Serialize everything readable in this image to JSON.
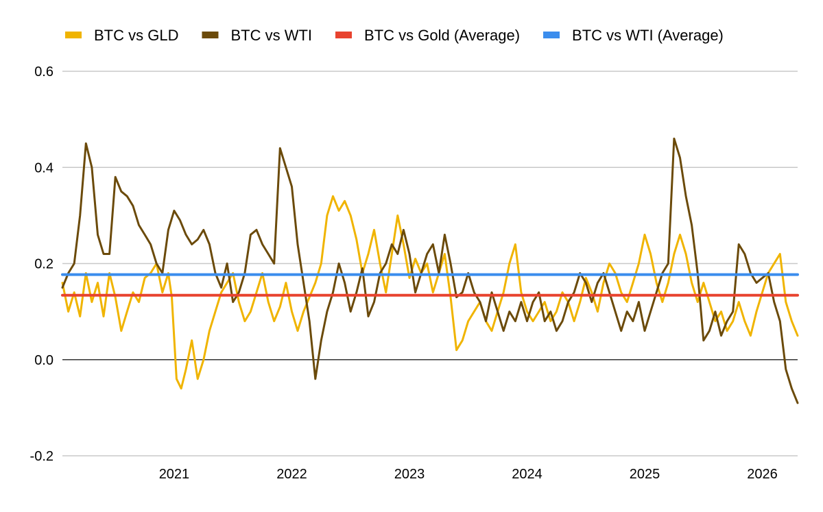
{
  "chart_data": {
    "type": "line",
    "title": "",
    "xlabel": "",
    "ylabel": "",
    "ylim": [
      -0.2,
      0.6
    ],
    "y_ticks": [
      {
        "value": 0.6,
        "label": "0.6"
      },
      {
        "value": 0.4,
        "label": "0.4"
      },
      {
        "value": 0.2,
        "label": "0.2"
      },
      {
        "value": 0.0,
        "label": "0.0"
      },
      {
        "value": -0.2,
        "label": "-0.2"
      }
    ],
    "x_range": [
      2020.05,
      2026.3
    ],
    "x_ticks": [
      {
        "value": 2021.0,
        "label": "2021"
      },
      {
        "value": 2022.0,
        "label": "2022"
      },
      {
        "value": 2023.0,
        "label": "2023"
      },
      {
        "value": 2024.0,
        "label": "2024"
      },
      {
        "value": 2025.0,
        "label": "2025"
      },
      {
        "value": 2026.0,
        "label": "2026"
      }
    ],
    "grid": true,
    "legend_position": "top",
    "series": [
      {
        "name": "BTC vs GLD",
        "color": "#f0b400",
        "points": [
          [
            2020.05,
            0.16
          ],
          [
            2020.1,
            0.1
          ],
          [
            2020.15,
            0.14
          ],
          [
            2020.2,
            0.09
          ],
          [
            2020.25,
            0.18
          ],
          [
            2020.3,
            0.12
          ],
          [
            2020.35,
            0.16
          ],
          [
            2020.4,
            0.09
          ],
          [
            2020.45,
            0.18
          ],
          [
            2020.5,
            0.13
          ],
          [
            2020.55,
            0.06
          ],
          [
            2020.6,
            0.1
          ],
          [
            2020.65,
            0.14
          ],
          [
            2020.7,
            0.12
          ],
          [
            2020.75,
            0.17
          ],
          [
            2020.8,
            0.18
          ],
          [
            2020.85,
            0.2
          ],
          [
            2020.9,
            0.14
          ],
          [
            2020.95,
            0.18
          ],
          [
            2020.98,
            0.13
          ],
          [
            2021.02,
            -0.04
          ],
          [
            2021.06,
            -0.06
          ],
          [
            2021.1,
            -0.02
          ],
          [
            2021.15,
            0.04
          ],
          [
            2021.2,
            -0.04
          ],
          [
            2021.25,
            0.0
          ],
          [
            2021.3,
            0.06
          ],
          [
            2021.35,
            0.1
          ],
          [
            2021.4,
            0.14
          ],
          [
            2021.45,
            0.16
          ],
          [
            2021.5,
            0.18
          ],
          [
            2021.55,
            0.12
          ],
          [
            2021.6,
            0.08
          ],
          [
            2021.65,
            0.1
          ],
          [
            2021.7,
            0.14
          ],
          [
            2021.75,
            0.18
          ],
          [
            2021.8,
            0.12
          ],
          [
            2021.85,
            0.08
          ],
          [
            2021.9,
            0.11
          ],
          [
            2021.95,
            0.16
          ],
          [
            2022.0,
            0.1
          ],
          [
            2022.05,
            0.06
          ],
          [
            2022.1,
            0.1
          ],
          [
            2022.15,
            0.13
          ],
          [
            2022.2,
            0.16
          ],
          [
            2022.25,
            0.2
          ],
          [
            2022.3,
            0.3
          ],
          [
            2022.35,
            0.34
          ],
          [
            2022.4,
            0.31
          ],
          [
            2022.45,
            0.33
          ],
          [
            2022.5,
            0.3
          ],
          [
            2022.55,
            0.25
          ],
          [
            2022.6,
            0.18
          ],
          [
            2022.65,
            0.22
          ],
          [
            2022.7,
            0.27
          ],
          [
            2022.75,
            0.2
          ],
          [
            2022.8,
            0.14
          ],
          [
            2022.85,
            0.22
          ],
          [
            2022.9,
            0.3
          ],
          [
            2022.95,
            0.24
          ],
          [
            2023.0,
            0.17
          ],
          [
            2023.05,
            0.21
          ],
          [
            2023.1,
            0.18
          ],
          [
            2023.15,
            0.2
          ],
          [
            2023.2,
            0.14
          ],
          [
            2023.25,
            0.18
          ],
          [
            2023.3,
            0.22
          ],
          [
            2023.35,
            0.13
          ],
          [
            2023.4,
            0.02
          ],
          [
            2023.45,
            0.04
          ],
          [
            2023.5,
            0.08
          ],
          [
            2023.55,
            0.1
          ],
          [
            2023.6,
            0.12
          ],
          [
            2023.65,
            0.08
          ],
          [
            2023.7,
            0.06
          ],
          [
            2023.75,
            0.1
          ],
          [
            2023.8,
            0.14
          ],
          [
            2023.85,
            0.2
          ],
          [
            2023.9,
            0.24
          ],
          [
            2023.95,
            0.14
          ],
          [
            2024.0,
            0.1
          ],
          [
            2024.05,
            0.08
          ],
          [
            2024.1,
            0.1
          ],
          [
            2024.15,
            0.12
          ],
          [
            2024.2,
            0.08
          ],
          [
            2024.25,
            0.1
          ],
          [
            2024.3,
            0.14
          ],
          [
            2024.35,
            0.12
          ],
          [
            2024.4,
            0.08
          ],
          [
            2024.45,
            0.12
          ],
          [
            2024.5,
            0.17
          ],
          [
            2024.55,
            0.14
          ],
          [
            2024.6,
            0.1
          ],
          [
            2024.65,
            0.16
          ],
          [
            2024.7,
            0.2
          ],
          [
            2024.75,
            0.18
          ],
          [
            2024.8,
            0.14
          ],
          [
            2024.85,
            0.12
          ],
          [
            2024.9,
            0.16
          ],
          [
            2024.95,
            0.2
          ],
          [
            2025.0,
            0.26
          ],
          [
            2025.05,
            0.22
          ],
          [
            2025.1,
            0.16
          ],
          [
            2025.15,
            0.12
          ],
          [
            2025.2,
            0.16
          ],
          [
            2025.25,
            0.22
          ],
          [
            2025.3,
            0.26
          ],
          [
            2025.35,
            0.22
          ],
          [
            2025.4,
            0.16
          ],
          [
            2025.45,
            0.12
          ],
          [
            2025.5,
            0.16
          ],
          [
            2025.55,
            0.12
          ],
          [
            2025.6,
            0.08
          ],
          [
            2025.65,
            0.1
          ],
          [
            2025.7,
            0.06
          ],
          [
            2025.75,
            0.08
          ],
          [
            2025.8,
            0.12
          ],
          [
            2025.85,
            0.08
          ],
          [
            2025.9,
            0.05
          ],
          [
            2025.95,
            0.1
          ],
          [
            2026.0,
            0.14
          ],
          [
            2026.05,
            0.18
          ],
          [
            2026.1,
            0.2
          ],
          [
            2026.15,
            0.22
          ],
          [
            2026.2,
            0.12
          ],
          [
            2026.25,
            0.08
          ],
          [
            2026.3,
            0.05
          ]
        ]
      },
      {
        "name": "BTC vs WTI",
        "color": "#6b4a0a",
        "points": [
          [
            2020.05,
            0.15
          ],
          [
            2020.1,
            0.18
          ],
          [
            2020.15,
            0.2
          ],
          [
            2020.2,
            0.3
          ],
          [
            2020.25,
            0.45
          ],
          [
            2020.3,
            0.4
          ],
          [
            2020.35,
            0.26
          ],
          [
            2020.4,
            0.22
          ],
          [
            2020.45,
            0.22
          ],
          [
            2020.5,
            0.38
          ],
          [
            2020.55,
            0.35
          ],
          [
            2020.6,
            0.34
          ],
          [
            2020.65,
            0.32
          ],
          [
            2020.7,
            0.28
          ],
          [
            2020.75,
            0.26
          ],
          [
            2020.8,
            0.24
          ],
          [
            2020.85,
            0.2
          ],
          [
            2020.9,
            0.18
          ],
          [
            2020.95,
            0.27
          ],
          [
            2021.0,
            0.31
          ],
          [
            2021.05,
            0.29
          ],
          [
            2021.1,
            0.26
          ],
          [
            2021.15,
            0.24
          ],
          [
            2021.2,
            0.25
          ],
          [
            2021.25,
            0.27
          ],
          [
            2021.3,
            0.24
          ],
          [
            2021.35,
            0.18
          ],
          [
            2021.4,
            0.15
          ],
          [
            2021.45,
            0.2
          ],
          [
            2021.5,
            0.12
          ],
          [
            2021.55,
            0.14
          ],
          [
            2021.6,
            0.18
          ],
          [
            2021.65,
            0.26
          ],
          [
            2021.7,
            0.27
          ],
          [
            2021.75,
            0.24
          ],
          [
            2021.8,
            0.22
          ],
          [
            2021.85,
            0.2
          ],
          [
            2021.9,
            0.44
          ],
          [
            2021.95,
            0.4
          ],
          [
            2022.0,
            0.36
          ],
          [
            2022.05,
            0.24
          ],
          [
            2022.1,
            0.16
          ],
          [
            2022.15,
            0.08
          ],
          [
            2022.2,
            -0.04
          ],
          [
            2022.25,
            0.04
          ],
          [
            2022.3,
            0.1
          ],
          [
            2022.35,
            0.14
          ],
          [
            2022.4,
            0.2
          ],
          [
            2022.45,
            0.16
          ],
          [
            2022.5,
            0.1
          ],
          [
            2022.55,
            0.14
          ],
          [
            2022.6,
            0.19
          ],
          [
            2022.65,
            0.09
          ],
          [
            2022.7,
            0.12
          ],
          [
            2022.75,
            0.18
          ],
          [
            2022.8,
            0.2
          ],
          [
            2022.85,
            0.24
          ],
          [
            2022.9,
            0.22
          ],
          [
            2022.95,
            0.27
          ],
          [
            2023.0,
            0.22
          ],
          [
            2023.05,
            0.14
          ],
          [
            2023.1,
            0.18
          ],
          [
            2023.15,
            0.22
          ],
          [
            2023.2,
            0.24
          ],
          [
            2023.25,
            0.18
          ],
          [
            2023.3,
            0.26
          ],
          [
            2023.35,
            0.2
          ],
          [
            2023.4,
            0.13
          ],
          [
            2023.45,
            0.14
          ],
          [
            2023.5,
            0.18
          ],
          [
            2023.55,
            0.14
          ],
          [
            2023.6,
            0.12
          ],
          [
            2023.65,
            0.08
          ],
          [
            2023.7,
            0.14
          ],
          [
            2023.75,
            0.1
          ],
          [
            2023.8,
            0.06
          ],
          [
            2023.85,
            0.1
          ],
          [
            2023.9,
            0.08
          ],
          [
            2023.95,
            0.12
          ],
          [
            2024.0,
            0.08
          ],
          [
            2024.05,
            0.12
          ],
          [
            2024.1,
            0.14
          ],
          [
            2024.15,
            0.08
          ],
          [
            2024.2,
            0.1
          ],
          [
            2024.25,
            0.06
          ],
          [
            2024.3,
            0.08
          ],
          [
            2024.35,
            0.12
          ],
          [
            2024.4,
            0.14
          ],
          [
            2024.45,
            0.18
          ],
          [
            2024.5,
            0.16
          ],
          [
            2024.55,
            0.12
          ],
          [
            2024.6,
            0.16
          ],
          [
            2024.65,
            0.18
          ],
          [
            2024.7,
            0.14
          ],
          [
            2024.75,
            0.1
          ],
          [
            2024.8,
            0.06
          ],
          [
            2024.85,
            0.1
          ],
          [
            2024.9,
            0.08
          ],
          [
            2024.95,
            0.12
          ],
          [
            2025.0,
            0.06
          ],
          [
            2025.05,
            0.1
          ],
          [
            2025.1,
            0.14
          ],
          [
            2025.15,
            0.18
          ],
          [
            2025.2,
            0.2
          ],
          [
            2025.25,
            0.46
          ],
          [
            2025.3,
            0.42
          ],
          [
            2025.35,
            0.34
          ],
          [
            2025.4,
            0.28
          ],
          [
            2025.45,
            0.18
          ],
          [
            2025.5,
            0.04
          ],
          [
            2025.55,
            0.06
          ],
          [
            2025.6,
            0.1
          ],
          [
            2025.65,
            0.05
          ],
          [
            2025.7,
            0.08
          ],
          [
            2025.75,
            0.1
          ],
          [
            2025.8,
            0.24
          ],
          [
            2025.85,
            0.22
          ],
          [
            2025.9,
            0.18
          ],
          [
            2025.95,
            0.16
          ],
          [
            2026.0,
            0.17
          ],
          [
            2026.05,
            0.18
          ],
          [
            2026.1,
            0.12
          ],
          [
            2026.15,
            0.08
          ],
          [
            2026.2,
            -0.02
          ],
          [
            2026.25,
            -0.06
          ],
          [
            2026.3,
            -0.09
          ]
        ]
      },
      {
        "name": "BTC vs Gold (Average)",
        "color": "#e8432f",
        "points": [
          [
            2020.05,
            0.134
          ],
          [
            2026.3,
            0.134
          ]
        ]
      },
      {
        "name": "BTC vs WTI (Average)",
        "color": "#3b8ded",
        "points": [
          [
            2020.05,
            0.177
          ],
          [
            2026.3,
            0.177
          ]
        ]
      }
    ]
  }
}
